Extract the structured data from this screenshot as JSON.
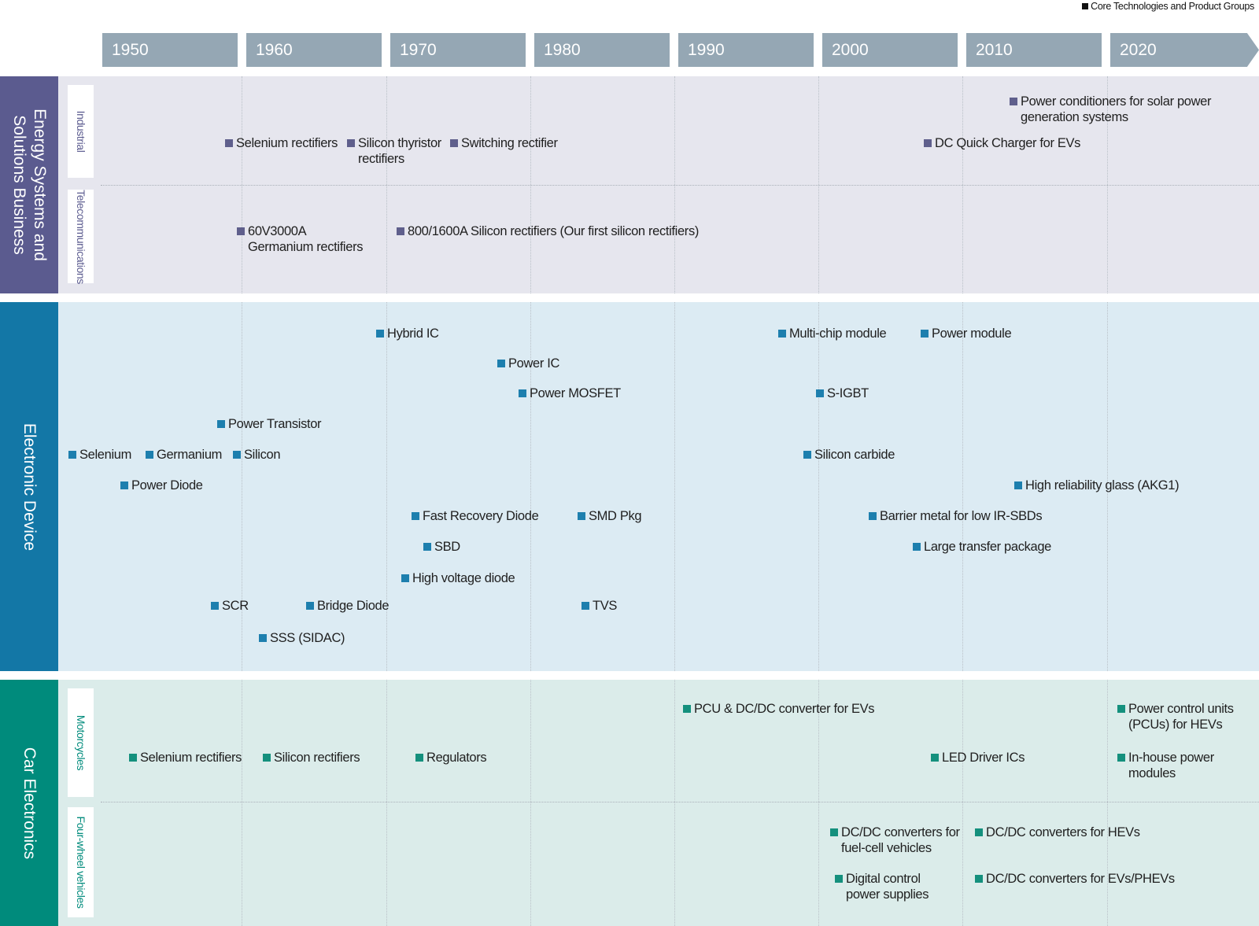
{
  "legend": "Core Technologies and Product Groups",
  "years": [
    "1950",
    "1960",
    "1970",
    "1980",
    "1990",
    "2000",
    "2010",
    "2020"
  ],
  "colors": {
    "year_bar": "#95a7b4",
    "energy_label": "#5b5b8f",
    "energy_bg": "#e6e6ee",
    "energy_marker": "#5f5f8c",
    "electronic_label": "#1377a6",
    "electronic_bg": "#dcebf3",
    "electronic_marker": "#1d7fae",
    "car_label": "#008b7c",
    "car_bg": "#dbecea",
    "car_marker": "#14907d"
  },
  "sections": {
    "energy": {
      "label": "Energy Systems and Solutions Business",
      "sub": {
        "industrial": "Industrial",
        "telecom": "Telecommunications"
      },
      "items": [
        "Selenium rectifiers",
        "Silicon thyristor rectifiers",
        "Switching rectifier",
        "Power conditioners for solar power generation systems",
        "DC Quick Charger for EVs",
        "60V3000A Germanium rectifiers",
        "800/1600A Silicon rectifiers (Our first silicon rectifiers)"
      ]
    },
    "electronic": {
      "label": "Electronic Device",
      "items": [
        "Hybrid IC",
        "Multi-chip module",
        "Power module",
        "Power IC",
        "Power MOSFET",
        "S-IGBT",
        "Power Transistor",
        "Selenium",
        "Germanium",
        "Silicon",
        "Silicon carbide",
        "Power Diode",
        "High reliability glass (AKG1)",
        "Fast Recovery Diode",
        "SMD Pkg",
        "Barrier metal for low IR-SBDs",
        "SBD",
        "Large transfer package",
        "High voltage diode",
        "SCR",
        "Bridge Diode",
        "TVS",
        "SSS (SIDAC)"
      ]
    },
    "car": {
      "label": "Car Electronics",
      "sub": {
        "motorcycles": "Motorcycles",
        "fourwheel": "Four-wheel vehicles"
      },
      "items": [
        "PCU & DC/DC converter for EVs",
        "Power control units (PCUs) for HEVs",
        "Selenium rectifiers",
        "Silicon rectifiers",
        "Regulators",
        "LED Driver ICs",
        "In-house power modules",
        "DC/DC converters for fuel-cell vehicles",
        "DC/DC converters for HEVs",
        "Digital control power supplies",
        "DC/DC converters for EVs/PHEVs"
      ]
    }
  }
}
